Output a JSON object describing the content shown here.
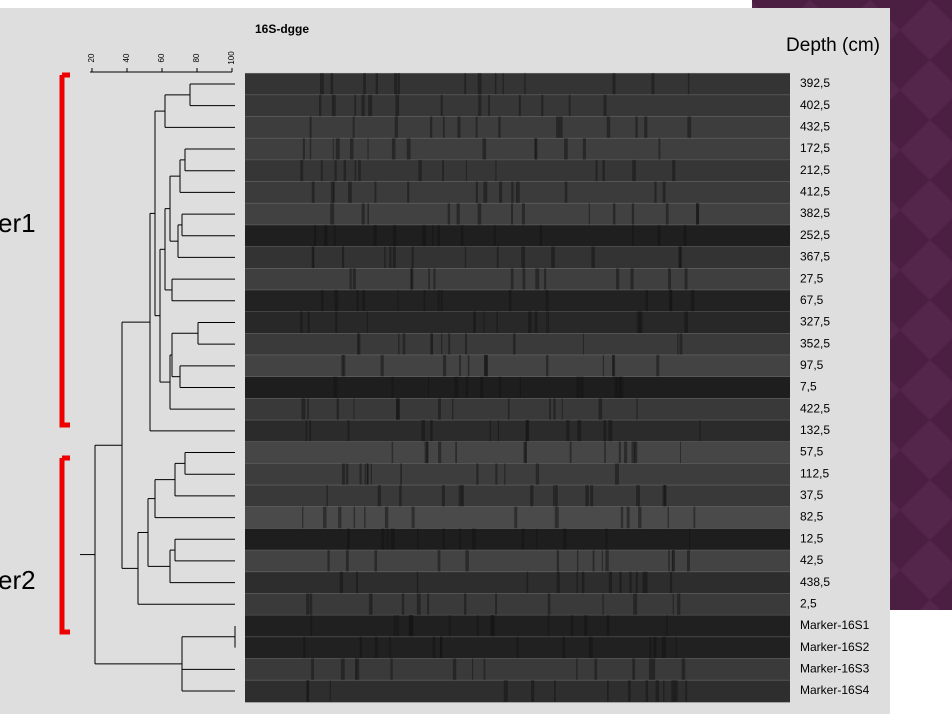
{
  "figure": {
    "title": "16S-dgge",
    "depth_label": "Depth (cm)",
    "scale_labels": [
      "20",
      "40",
      "60",
      "80",
      "100"
    ],
    "lanes": [
      "392,5",
      "402,5",
      "432,5",
      "172,5",
      "212,5",
      "412,5",
      "382,5",
      "252,5",
      "367,5",
      "27,5",
      "67,5",
      "327,5",
      "352,5",
      "97,5",
      "7,5",
      "422,5",
      "132,5",
      "57,5",
      "112,5",
      "37,5",
      "82,5",
      "12,5",
      "42,5",
      "438,5",
      "2,5",
      "Marker-16S1",
      "Marker-16S2",
      "Marker-16S3",
      "Marker-16S4"
    ],
    "clusters": [
      "er1",
      "er2"
    ]
  }
}
